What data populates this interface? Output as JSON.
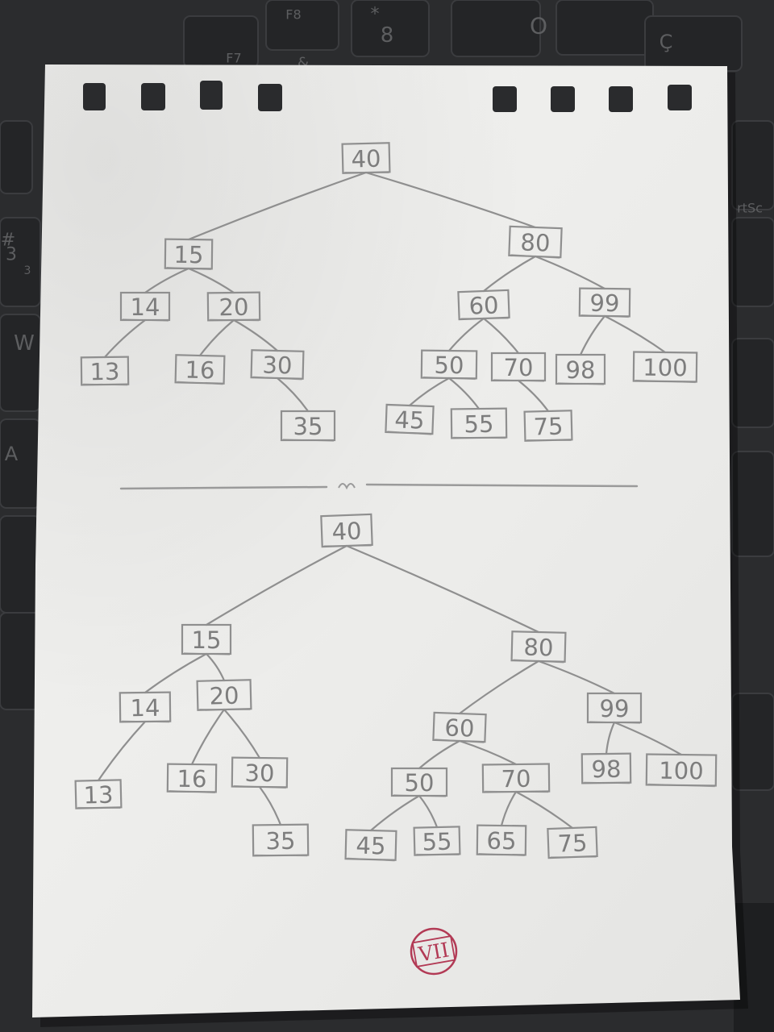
{
  "keyboard": {
    "keys": [
      {
        "label": "F7"
      },
      {
        "label": "F8"
      },
      {
        "label": "8"
      },
      {
        "label": "*"
      },
      {
        "label": "O"
      },
      {
        "label": "Ç"
      },
      {
        "label": "&"
      },
      {
        "label": "#"
      },
      {
        "label": "3"
      },
      {
        "label": "3"
      },
      {
        "label": "W"
      },
      {
        "label": "A"
      },
      {
        "label": "rtSc"
      }
    ]
  },
  "diagram": {
    "trees": [
      {
        "nodes": [
          {
            "id": "a40",
            "label": "40"
          },
          {
            "id": "a15",
            "label": "15"
          },
          {
            "id": "a80",
            "label": "80"
          },
          {
            "id": "a14",
            "label": "14"
          },
          {
            "id": "a20",
            "label": "20"
          },
          {
            "id": "a60",
            "label": "60"
          },
          {
            "id": "a99",
            "label": "99"
          },
          {
            "id": "a13",
            "label": "13"
          },
          {
            "id": "a16",
            "label": "16"
          },
          {
            "id": "a30",
            "label": "30"
          },
          {
            "id": "a50",
            "label": "50"
          },
          {
            "id": "a70",
            "label": "70"
          },
          {
            "id": "a98",
            "label": "98"
          },
          {
            "id": "a100",
            "label": "100"
          },
          {
            "id": "a35",
            "label": "35"
          },
          {
            "id": "a45",
            "label": "45"
          },
          {
            "id": "a55",
            "label": "55"
          },
          {
            "id": "a75",
            "label": "75"
          }
        ],
        "edges": [
          [
            "a40",
            "a15"
          ],
          [
            "a40",
            "a80"
          ],
          [
            "a15",
            "a14"
          ],
          [
            "a15",
            "a20"
          ],
          [
            "a80",
            "a60"
          ],
          [
            "a80",
            "a99"
          ],
          [
            "a14",
            "a13"
          ],
          [
            "a20",
            "a16"
          ],
          [
            "a20",
            "a30"
          ],
          [
            "a30",
            "a35"
          ],
          [
            "a60",
            "a50"
          ],
          [
            "a60",
            "a70"
          ],
          [
            "a99",
            "a98"
          ],
          [
            "a99",
            "a100"
          ],
          [
            "a50",
            "a45"
          ],
          [
            "a50",
            "a55"
          ],
          [
            "a70",
            "a75"
          ]
        ]
      },
      {
        "nodes": [
          {
            "id": "b40",
            "label": "40"
          },
          {
            "id": "b15",
            "label": "15"
          },
          {
            "id": "b80",
            "label": "80"
          },
          {
            "id": "b14",
            "label": "14"
          },
          {
            "id": "b20",
            "label": "20"
          },
          {
            "id": "b60",
            "label": "60"
          },
          {
            "id": "b99",
            "label": "99"
          },
          {
            "id": "b13",
            "label": "13"
          },
          {
            "id": "b16",
            "label": "16"
          },
          {
            "id": "b30",
            "label": "30"
          },
          {
            "id": "b50",
            "label": "50"
          },
          {
            "id": "b70",
            "label": "70"
          },
          {
            "id": "b98",
            "label": "98"
          },
          {
            "id": "b100",
            "label": "100"
          },
          {
            "id": "b35",
            "label": "35"
          },
          {
            "id": "b45",
            "label": "45"
          },
          {
            "id": "b55",
            "label": "55"
          },
          {
            "id": "b65",
            "label": "65"
          },
          {
            "id": "b75",
            "label": "75"
          }
        ],
        "edges": [
          [
            "b40",
            "b15"
          ],
          [
            "b40",
            "b80"
          ],
          [
            "b15",
            "b14"
          ],
          [
            "b15",
            "b20"
          ],
          [
            "b80",
            "b60"
          ],
          [
            "b80",
            "b99"
          ],
          [
            "b14",
            "b13"
          ],
          [
            "b20",
            "b16"
          ],
          [
            "b20",
            "b30"
          ],
          [
            "b30",
            "b35"
          ],
          [
            "b60",
            "b50"
          ],
          [
            "b60",
            "b70"
          ],
          [
            "b99",
            "b98"
          ],
          [
            "b99",
            "b100"
          ],
          [
            "b50",
            "b45"
          ],
          [
            "b50",
            "b55"
          ],
          [
            "b70",
            "b65"
          ],
          [
            "b70",
            "b75"
          ]
        ]
      }
    ],
    "stamp": "VII"
  },
  "colors": {
    "pencil": "#8f8f8f",
    "paper": "#efefed",
    "stamp": "#b23a55",
    "keyboard": "#2a2b2d"
  }
}
